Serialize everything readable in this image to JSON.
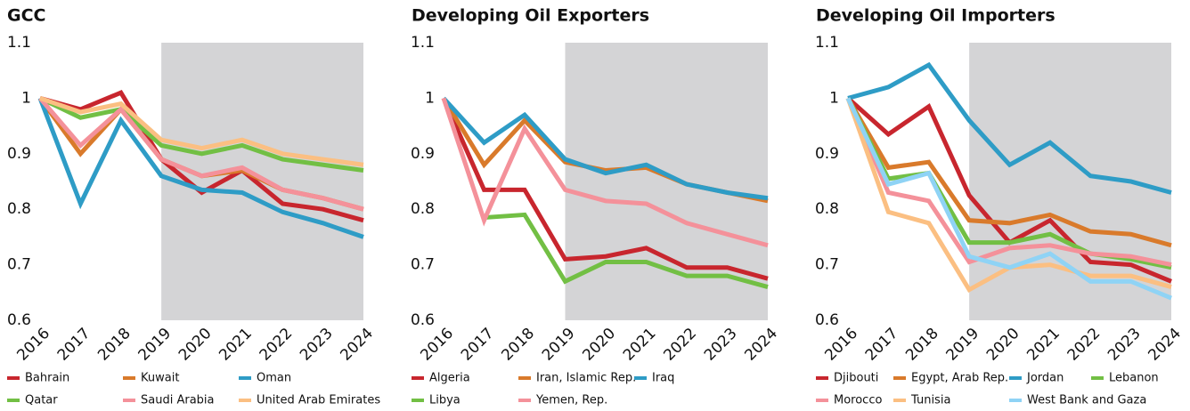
{
  "chart_data": [
    {
      "type": "line",
      "title": "GCC",
      "categories": [
        "2016",
        "2017",
        "2018",
        "2019",
        "2020",
        "2021",
        "2022",
        "2023",
        "2024"
      ],
      "ylim": [
        0.6,
        1.1
      ],
      "yticks": [
        0.6,
        0.7,
        0.8,
        0.9,
        1.0,
        1.1
      ],
      "shade": [
        "2019",
        "2024"
      ],
      "legend": "bottom",
      "series": [
        {
          "name": "Bahrain",
          "color": "#c8262e",
          "values": [
            1.0,
            0.98,
            1.01,
            0.89,
            0.83,
            0.87,
            0.81,
            0.8,
            0.78
          ]
        },
        {
          "name": "Kuwait",
          "color": "#d97a2b",
          "values": [
            1.0,
            0.9,
            0.98,
            0.89,
            0.86,
            0.87,
            0.835,
            0.82,
            0.8
          ]
        },
        {
          "name": "Oman",
          "color": "#2e9cc6",
          "values": [
            1.0,
            0.81,
            0.96,
            0.86,
            0.835,
            0.83,
            0.795,
            0.775,
            0.75
          ]
        },
        {
          "name": "Qatar",
          "color": "#72bf44",
          "values": [
            1.0,
            0.965,
            0.98,
            0.915,
            0.9,
            0.915,
            0.89,
            0.88,
            0.87
          ]
        },
        {
          "name": "Saudi Arabia",
          "color": "#f4919a",
          "values": [
            1.0,
            0.915,
            0.98,
            0.89,
            0.86,
            0.875,
            0.835,
            0.82,
            0.8
          ]
        },
        {
          "name": "United Arab Emirates",
          "color": "#fbbf82",
          "values": [
            1.0,
            0.975,
            0.99,
            0.925,
            0.91,
            0.925,
            0.9,
            0.89,
            0.88
          ]
        }
      ]
    },
    {
      "type": "line",
      "title": "Developing Oil Exporters",
      "categories": [
        "2016",
        "2017",
        "2018",
        "2019",
        "2020",
        "2021",
        "2022",
        "2023",
        "2024"
      ],
      "ylim": [
        0.6,
        1.1
      ],
      "yticks": [
        0.6,
        0.7,
        0.8,
        0.9,
        1.0,
        1.1
      ],
      "shade": [
        "2019",
        "2024"
      ],
      "legend": "bottom",
      "series": [
        {
          "name": "Algeria",
          "color": "#c8262e",
          "values": [
            1.0,
            0.835,
            0.835,
            0.71,
            0.715,
            0.73,
            0.695,
            0.695,
            0.675
          ]
        },
        {
          "name": "Iran, Islamic Rep.",
          "color": "#d97a2b",
          "values": [
            1.0,
            0.88,
            0.96,
            0.885,
            0.87,
            0.875,
            0.845,
            0.83,
            0.815
          ]
        },
        {
          "name": "Iraq",
          "color": "#2e9cc6",
          "values": [
            1.0,
            0.92,
            0.97,
            0.89,
            0.865,
            0.88,
            0.845,
            0.83,
            0.82
          ]
        },
        {
          "name": "Libya",
          "color": "#72bf44",
          "values": [
            null,
            0.785,
            0.79,
            0.67,
            0.705,
            0.705,
            0.68,
            0.68,
            0.66
          ]
        },
        {
          "name": "Yemen, Rep.",
          "color": "#f4919a",
          "values": [
            1.0,
            0.78,
            0.945,
            0.835,
            0.815,
            0.81,
            0.775,
            0.755,
            0.735
          ]
        }
      ]
    },
    {
      "type": "line",
      "title": "Developing Oil Importers",
      "categories": [
        "2016",
        "2017",
        "2018",
        "2019",
        "2020",
        "2021",
        "2022",
        "2023",
        "2024"
      ],
      "ylim": [
        0.6,
        1.1
      ],
      "yticks": [
        0.6,
        0.7,
        0.8,
        0.9,
        1.0,
        1.1
      ],
      "shade": [
        "2019",
        "2024"
      ],
      "legend": "bottom",
      "series": [
        {
          "name": "Djibouti",
          "color": "#c8262e",
          "values": [
            1.0,
            0.935,
            0.985,
            0.825,
            0.74,
            0.78,
            0.705,
            0.7,
            0.67
          ]
        },
        {
          "name": "Egypt, Arab Rep.",
          "color": "#d97a2b",
          "values": [
            1.0,
            0.875,
            0.885,
            0.78,
            0.775,
            0.79,
            0.76,
            0.755,
            0.735
          ]
        },
        {
          "name": "Jordan",
          "color": "#2e9cc6",
          "values": [
            1.0,
            1.02,
            1.06,
            0.96,
            0.88,
            0.92,
            0.86,
            0.85,
            0.83
          ]
        },
        {
          "name": "Lebanon",
          "color": "#72bf44",
          "values": [
            1.0,
            0.855,
            0.865,
            0.74,
            0.74,
            0.755,
            0.72,
            0.71,
            0.695
          ]
        },
        {
          "name": "Morocco",
          "color": "#f4919a",
          "values": [
            1.0,
            0.83,
            0.815,
            0.705,
            0.73,
            0.735,
            0.72,
            0.715,
            0.7
          ]
        },
        {
          "name": "Tunisia",
          "color": "#fbbf82",
          "values": [
            1.0,
            0.795,
            0.775,
            0.655,
            0.695,
            0.7,
            0.68,
            0.68,
            0.66
          ]
        },
        {
          "name": "West Bank and Gaza",
          "color": "#8fd3f5",
          "values": [
            1.0,
            0.845,
            0.865,
            0.715,
            0.695,
            0.72,
            0.67,
            0.67,
            0.64
          ]
        }
      ]
    }
  ]
}
